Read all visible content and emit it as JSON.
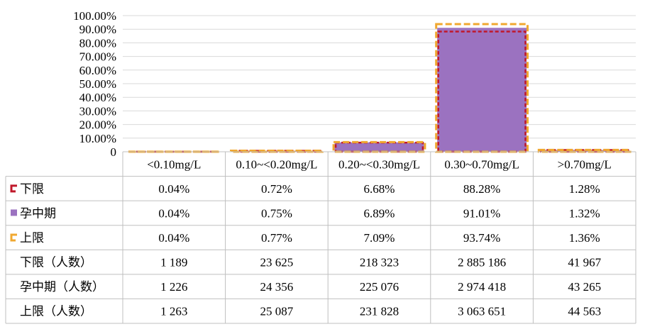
{
  "chart_data": {
    "type": "bar",
    "title": "",
    "xlabel": "",
    "ylabel": "",
    "ylim": [
      0,
      100
    ],
    "y_ticks": [
      "100.00%",
      "90.00%",
      "80.00%",
      "70.00%",
      "60.00%",
      "50.00%",
      "40.00%",
      "30.00%",
      "20.00%",
      "10.00%",
      "0"
    ],
    "grid": true,
    "legend": "data-table",
    "categories": [
      "<0.10mg/L",
      "0.10~<0.20mg/L",
      "0.20~<0.30mg/L",
      "0.30~0.70mg/L",
      ">0.70mg/L"
    ],
    "series": [
      {
        "name": "下限",
        "style": "dashed-outline",
        "color": "#c0182a",
        "values": [
          0.04,
          0.72,
          6.68,
          88.28,
          1.28
        ],
        "labels": [
          "0.04%",
          "0.72%",
          "6.68%",
          "88.28%",
          "1.28%"
        ]
      },
      {
        "name": "孕中期",
        "style": "filled-bar",
        "color": "#9b72c0",
        "values": [
          0.04,
          0.75,
          6.89,
          91.01,
          1.32
        ],
        "labels": [
          "0.04%",
          "0.75%",
          "6.89%",
          "91.01%",
          "1.32%"
        ]
      },
      {
        "name": "上限",
        "style": "dashed-outline",
        "color": "#f0a830",
        "values": [
          0.04,
          0.77,
          7.09,
          93.74,
          1.36
        ],
        "labels": [
          "0.04%",
          "0.77%",
          "7.09%",
          "93.74%",
          "1.36%"
        ]
      }
    ],
    "count_rows": [
      {
        "name": "下限（人数）",
        "values": [
          "1 189",
          "23 625",
          "218 323",
          "2 885 186",
          "41 967"
        ]
      },
      {
        "name": "孕中期（人数）",
        "values": [
          "1 226",
          "24 356",
          "225 076",
          "2 974 418",
          "43 265"
        ]
      },
      {
        "name": "上限（人数）",
        "values": [
          "1 263",
          "25 087",
          "231 828",
          "3 063 651",
          "44 563"
        ]
      }
    ]
  }
}
